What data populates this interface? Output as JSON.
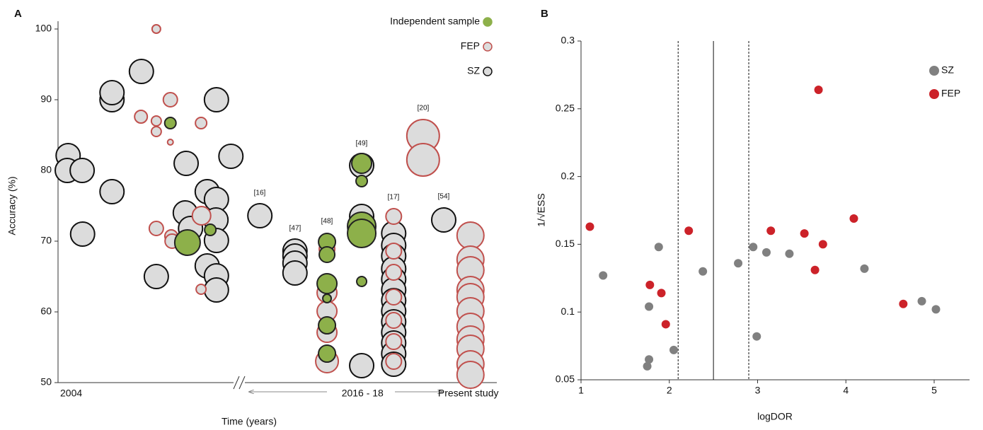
{
  "chart_data": [
    {
      "type": "bubble",
      "label": "A",
      "y_label": "Accuracy (%)",
      "x_label": "Time (years)",
      "ylim": [
        50,
        100
      ],
      "yticks": [
        50,
        60,
        70,
        80,
        90,
        100
      ],
      "xlim": [
        0,
        100
      ],
      "xticks": [
        {
          "value": 3,
          "label": "2004"
        },
        {
          "value": 69.4,
          "label": "2016 - 18"
        },
        {
          "value": 93.5,
          "label": "Present study"
        }
      ],
      "legend": "upper right",
      "annotations": [
        "[16]",
        "[47]",
        "[48]",
        "[49]",
        "[17]",
        "[20]",
        "[54]"
      ],
      "series": [
        {
          "name": "Independent sample",
          "color": "#8db04a",
          "stroke": "#222",
          "x": [
            25.6,
            29.5,
            34.7,
            61.3,
            61.3,
            61.3,
            61.3,
            61.3,
            61.3,
            69.2,
            69.2,
            69.2,
            69.2,
            69.2
          ],
          "values": [
            86.7,
            69.8,
            71.6,
            69.9,
            68.1,
            64,
            61.9,
            58.1,
            54.1,
            81,
            78.5,
            72.1,
            71.1,
            64.3
          ],
          "sizes": [
            8,
            18,
            8,
            12,
            11,
            14,
            6,
            12,
            12,
            14,
            8,
            20,
            20,
            7
          ]
        },
        {
          "name": "FEP",
          "color": "#dcdcdc",
          "stroke": "#c0504d",
          "x": [
            22.4,
            18.9,
            22.4,
            25.6,
            22.4,
            25.6,
            32.6,
            22.4,
            25.8,
            26,
            32.7,
            32.6,
            61.3,
            61.3,
            61.3,
            61.3,
            61.3,
            76.5,
            76.5,
            76.5,
            76.5,
            76.5,
            76.5,
            76.5,
            83.2,
            83.2,
            94,
            94,
            94,
            94,
            94,
            94,
            94,
            94,
            94,
            94,
            94
          ],
          "values": [
            100,
            87.6,
            87,
            90,
            85.5,
            84,
            86.7,
            71.8,
            70.7,
            70,
            73.6,
            63.2,
            68.9,
            62.7,
            60.1,
            57.1,
            53,
            73.5,
            68.6,
            65.6,
            62.1,
            58.8,
            55.8,
            53,
            84.9,
            81.5,
            70.8,
            67.4,
            65.9,
            63.1,
            62.1,
            60.1,
            57.9,
            56.1,
            54.8,
            52.6,
            51.1
          ],
          "sizes": [
            6,
            9,
            7,
            10,
            7,
            4,
            8,
            10,
            9,
            10,
            13,
            7,
            11,
            14,
            14,
            14,
            16,
            11,
            11,
            11,
            11,
            11,
            11,
            11,
            23,
            23,
            19,
            19,
            19,
            19,
            19,
            19,
            19,
            19,
            19,
            19,
            19
          ]
        },
        {
          "name": "SZ",
          "color": "#dcdcdc",
          "stroke": "#111",
          "x": [
            2.3,
            2.1,
            5.5,
            5.6,
            12.3,
            12.3,
            12.3,
            19,
            29.2,
            29,
            30.2,
            34,
            36.1,
            36.1,
            36,
            36.1,
            34,
            36.1,
            36.1,
            39.4,
            22.4,
            46,
            54,
            54,
            54,
            54,
            69.2,
            69.2,
            69.2,
            69.2,
            76.5,
            76.5,
            76.5,
            76.5,
            76.5,
            76.5,
            76.5,
            76.5,
            76.5,
            76.5,
            76.5,
            76.5,
            76.5,
            87.9
          ],
          "values": [
            82.1,
            80,
            80,
            71,
            90,
            91,
            77,
            94,
            81,
            74,
            71.8,
            77,
            90,
            75.9,
            73,
            70.1,
            66.5,
            65.1,
            63.1,
            82,
            65,
            73.6,
            68.6,
            67.9,
            66.9,
            65.5,
            73.5,
            72.3,
            80.7,
            52.4,
            71.1,
            69.4,
            67.9,
            66.1,
            64.6,
            63.1,
            61.6,
            60.1,
            58.6,
            57.1,
            55.6,
            54.1,
            52.6,
            73
          ]
        },
        {
          "name": "",
          "color": "",
          "stroke": ""
        }
      ]
    },
    {
      "type": "scatter",
      "label": "B",
      "y_label": "1/√ESS",
      "x_label": "logDOR",
      "xlim": [
        1,
        5.4
      ],
      "xticks": [
        1,
        2,
        3,
        4,
        5
      ],
      "ylim": [
        0.05,
        0.3
      ],
      "yticks": [
        0.05,
        0.1,
        0.15,
        0.2,
        0.25,
        0.3
      ],
      "vlines": [
        {
          "value": 2.1,
          "style": "dashed"
        },
        {
          "value": 2.5,
          "style": "solid"
        },
        {
          "value": 2.9,
          "style": "dashed"
        }
      ],
      "legend": "upper right",
      "series": [
        {
          "name": "SZ",
          "color": "#808080",
          "x": [
            1.25,
            1.88,
            1.77,
            1.77,
            1.75,
            2.05,
            2.38,
            2.78,
            2.95,
            2.99,
            3.1,
            3.36,
            4.21,
            4.86,
            5.02
          ],
          "values": [
            0.127,
            0.148,
            0.104,
            0.065,
            0.06,
            0.072,
            0.13,
            0.136,
            0.148,
            0.082,
            0.144,
            0.143,
            0.132,
            0.108,
            0.102
          ]
        },
        {
          "name": "FEP",
          "color": "#cc2229",
          "x": [
            1.1,
            1.78,
            1.91,
            1.96,
            2.22,
            3.15,
            3.53,
            3.74,
            3.65,
            3.69,
            4.09,
            4.65
          ],
          "values": [
            0.163,
            0.12,
            0.114,
            0.091,
            0.16,
            0.16,
            0.158,
            0.15,
            0.131,
            0.264,
            0.169,
            0.106
          ]
        }
      ]
    }
  ]
}
